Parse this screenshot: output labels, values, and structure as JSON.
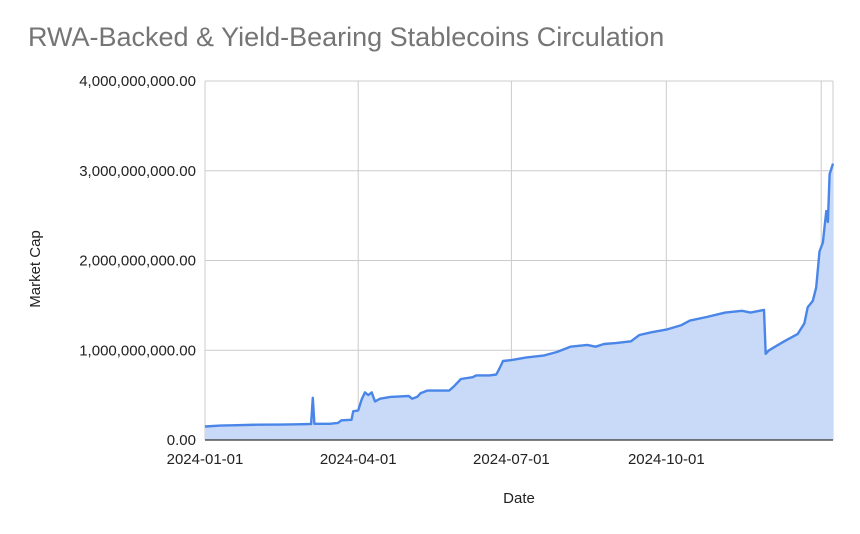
{
  "chart_data": {
    "type": "area",
    "title": "RWA-Backed & Yield-Bearing Stablecoins Circulation",
    "xlabel": "Date",
    "ylabel": "Market Cap",
    "ylim": [
      0,
      4000000000
    ],
    "yticks": [
      {
        "value": 0,
        "label": "0.00"
      },
      {
        "value": 1000000000,
        "label": "1,000,000,000.00"
      },
      {
        "value": 2000000000,
        "label": "2,000,000,000.00"
      },
      {
        "value": 3000000000,
        "label": "3,000,000,000.00"
      },
      {
        "value": 4000000000,
        "label": "4,000,000,000.00"
      }
    ],
    "xticks": [
      "2024-01-01",
      "2024-04-01",
      "2024-07-01",
      "2024-10-01"
    ],
    "xlim": [
      "2024-01-01",
      "2025-01-08"
    ],
    "grid": true,
    "series": [
      {
        "color": "#4a86e8",
        "fill": "#c9daf8",
        "points": [
          [
            "2024-01-01",
            150000000
          ],
          [
            "2024-01-10",
            160000000
          ],
          [
            "2024-01-20",
            165000000
          ],
          [
            "2024-02-01",
            170000000
          ],
          [
            "2024-02-15",
            172000000
          ],
          [
            "2024-02-25",
            175000000
          ],
          [
            "2024-03-04",
            178000000
          ],
          [
            "2024-03-05",
            470000000
          ],
          [
            "2024-03-06",
            180000000
          ],
          [
            "2024-03-15",
            180000000
          ],
          [
            "2024-03-20",
            190000000
          ],
          [
            "2024-03-22",
            220000000
          ],
          [
            "2024-03-28",
            225000000
          ],
          [
            "2024-03-29",
            320000000
          ],
          [
            "2024-04-01",
            330000000
          ],
          [
            "2024-04-03",
            450000000
          ],
          [
            "2024-04-05",
            530000000
          ],
          [
            "2024-04-07",
            500000000
          ],
          [
            "2024-04-09",
            530000000
          ],
          [
            "2024-04-11",
            430000000
          ],
          [
            "2024-04-14",
            460000000
          ],
          [
            "2024-04-20",
            480000000
          ],
          [
            "2024-05-01",
            490000000
          ],
          [
            "2024-05-03",
            460000000
          ],
          [
            "2024-05-06",
            480000000
          ],
          [
            "2024-05-08",
            520000000
          ],
          [
            "2024-05-12",
            550000000
          ],
          [
            "2024-05-25",
            550000000
          ],
          [
            "2024-05-28",
            600000000
          ],
          [
            "2024-06-01",
            680000000
          ],
          [
            "2024-06-08",
            700000000
          ],
          [
            "2024-06-10",
            720000000
          ],
          [
            "2024-06-18",
            720000000
          ],
          [
            "2024-06-22",
            730000000
          ],
          [
            "2024-06-24",
            800000000
          ],
          [
            "2024-06-26",
            880000000
          ],
          [
            "2024-07-01",
            890000000
          ],
          [
            "2024-07-10",
            920000000
          ],
          [
            "2024-07-20",
            940000000
          ],
          [
            "2024-07-28",
            980000000
          ],
          [
            "2024-08-05",
            1040000000
          ],
          [
            "2024-08-15",
            1060000000
          ],
          [
            "2024-08-20",
            1040000000
          ],
          [
            "2024-08-25",
            1070000000
          ],
          [
            "2024-09-01",
            1080000000
          ],
          [
            "2024-09-10",
            1100000000
          ],
          [
            "2024-09-15",
            1170000000
          ],
          [
            "2024-09-22",
            1200000000
          ],
          [
            "2024-10-01",
            1230000000
          ],
          [
            "2024-10-10",
            1280000000
          ],
          [
            "2024-10-15",
            1330000000
          ],
          [
            "2024-10-25",
            1370000000
          ],
          [
            "2024-11-05",
            1420000000
          ],
          [
            "2024-11-15",
            1440000000
          ],
          [
            "2024-11-20",
            1420000000
          ],
          [
            "2024-11-28",
            1450000000
          ],
          [
            "2024-11-29",
            960000000
          ],
          [
            "2024-12-01",
            1000000000
          ],
          [
            "2024-12-10",
            1100000000
          ],
          [
            "2024-12-18",
            1180000000
          ],
          [
            "2024-12-22",
            1300000000
          ],
          [
            "2024-12-24",
            1480000000
          ],
          [
            "2024-12-27",
            1550000000
          ],
          [
            "2024-12-29",
            1700000000
          ],
          [
            "2024-12-31",
            2100000000
          ],
          [
            "2025-01-02",
            2200000000
          ],
          [
            "2025-01-03",
            2380000000
          ],
          [
            "2025-01-04",
            2550000000
          ],
          [
            "2025-01-05",
            2430000000
          ],
          [
            "2025-01-06",
            2960000000
          ],
          [
            "2025-01-08",
            3080000000
          ]
        ]
      }
    ]
  }
}
